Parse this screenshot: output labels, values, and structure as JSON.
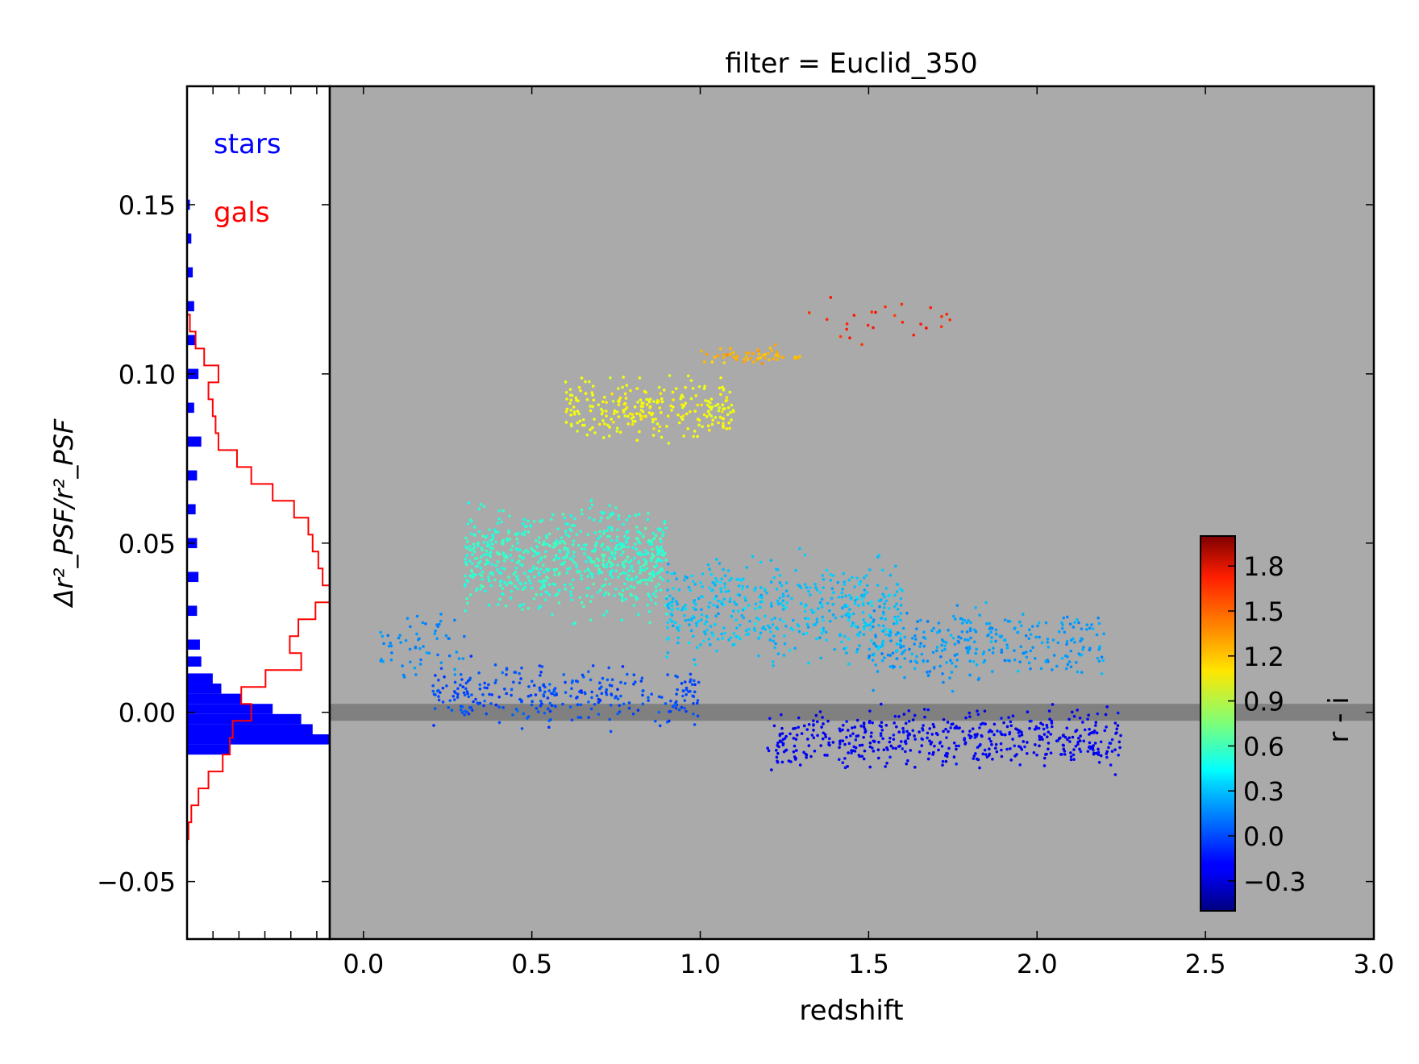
{
  "chart_data": [
    {
      "type": "histogram",
      "orientation": "horizontal",
      "ylabel": "Δr²_PSF/r²_PSF",
      "ylim": [
        -0.067,
        0.185
      ],
      "yticks": [
        -0.05,
        0.0,
        0.05,
        0.1,
        0.15
      ],
      "ytick_labels": [
        "−0.05",
        "0.00",
        "0.05",
        "0.10",
        "0.15"
      ],
      "legend": {
        "placement": "top-left",
        "entries": [
          {
            "label": "stars",
            "color": "#0000ff"
          },
          {
            "label": "gals",
            "color": "#ff0000"
          }
        ]
      },
      "series": [
        {
          "name": "stars",
          "style": "filled",
          "color": "#0000ff",
          "bins_y": [
            -0.011,
            -0.008,
            -0.005,
            -0.002,
            0.001,
            0.004,
            0.007,
            0.01,
            0.015,
            0.02,
            0.03,
            0.04,
            0.05,
            0.06,
            0.07,
            0.08,
            0.09,
            0.1,
            0.11,
            0.12,
            0.13,
            0.14,
            0.15
          ],
          "counts": [
            0.3,
            1.0,
            0.88,
            0.8,
            0.6,
            0.38,
            0.24,
            0.18,
            0.1,
            0.09,
            0.07,
            0.08,
            0.07,
            0.06,
            0.07,
            0.1,
            0.05,
            0.08,
            0.06,
            0.05,
            0.04,
            0.03,
            0.02
          ]
        },
        {
          "name": "gals",
          "style": "step",
          "color": "#ff0000",
          "bins_y": [
            -0.035,
            -0.03,
            -0.025,
            -0.02,
            -0.015,
            -0.01,
            -0.005,
            0.0,
            0.005,
            0.01,
            0.015,
            0.02,
            0.025,
            0.03,
            0.035,
            0.04,
            0.045,
            0.05,
            0.055,
            0.06,
            0.065,
            0.07,
            0.075,
            0.08,
            0.085,
            0.09,
            0.095,
            0.1,
            0.105,
            0.11,
            0.115
          ],
          "counts": [
            0.01,
            0.03,
            0.08,
            0.15,
            0.25,
            0.3,
            0.32,
            0.45,
            0.38,
            0.55,
            0.8,
            0.72,
            0.78,
            0.9,
            1.0,
            0.95,
            0.92,
            0.88,
            0.85,
            0.75,
            0.6,
            0.45,
            0.35,
            0.22,
            0.2,
            0.18,
            0.15,
            0.22,
            0.12,
            0.06,
            0.02
          ]
        }
      ]
    },
    {
      "type": "scatter",
      "title": "filter = Euclid_350",
      "xlabel": "redshift",
      "xlim": [
        -0.1,
        3.0
      ],
      "ylim": [
        -0.067,
        0.185
      ],
      "xticks": [
        0.0,
        0.5,
        1.0,
        1.5,
        2.0,
        2.5,
        3.0
      ],
      "xtick_labels": [
        "0.0",
        "0.5",
        "1.0",
        "1.5",
        "2.0",
        "2.5",
        "3.0"
      ],
      "background": "#aaaaaa",
      "reference_band": {
        "y_min": -0.0025,
        "y_max": 0.0025,
        "color": "#808080"
      },
      "color_variable": "r - i",
      "point_groups": [
        {
          "z": [
            0.05,
            0.3
          ],
          "y_center": 0.02,
          "y_spread": 0.014,
          "color_value": 0.15,
          "count": 60
        },
        {
          "z": [
            0.3,
            0.9
          ],
          "y_center": 0.045,
          "y_spread": 0.022,
          "color_value": 0.55,
          "count": 700
        },
        {
          "z": [
            0.6,
            1.1
          ],
          "y_center": 0.09,
          "y_spread": 0.012,
          "color_value": 1.05,
          "count": 260
        },
        {
          "z": [
            1.0,
            1.3
          ],
          "y_center": 0.105,
          "y_spread": 0.004,
          "color_value": 1.25,
          "count": 60
        },
        {
          "z": [
            1.3,
            1.75
          ],
          "y_center": 0.115,
          "y_spread": 0.01,
          "color_value": 1.6,
          "count": 25
        },
        {
          "z": [
            0.9,
            1.6
          ],
          "y_center": 0.03,
          "y_spread": 0.02,
          "color_value": 0.3,
          "count": 500
        },
        {
          "z": [
            1.2,
            2.25
          ],
          "y_center": -0.008,
          "y_spread": 0.012,
          "color_value": -0.2,
          "count": 500
        },
        {
          "z": [
            0.2,
            1.0
          ],
          "y_center": 0.005,
          "y_spread": 0.012,
          "color_value": 0.0,
          "count": 300
        },
        {
          "z": [
            1.5,
            2.2
          ],
          "y_center": 0.02,
          "y_spread": 0.015,
          "color_value": 0.2,
          "count": 300
        }
      ]
    },
    {
      "type": "colorbar",
      "label": "r - i",
      "colormap": "jet",
      "range": [
        -0.5,
        2.0
      ],
      "ticks": [
        -0.3,
        0.0,
        0.3,
        0.6,
        0.9,
        1.2,
        1.5,
        1.8
      ],
      "tick_labels": [
        "−0.3",
        "0.0",
        "0.3",
        "0.6",
        "0.9",
        "1.2",
        "1.5",
        "1.8"
      ]
    }
  ]
}
